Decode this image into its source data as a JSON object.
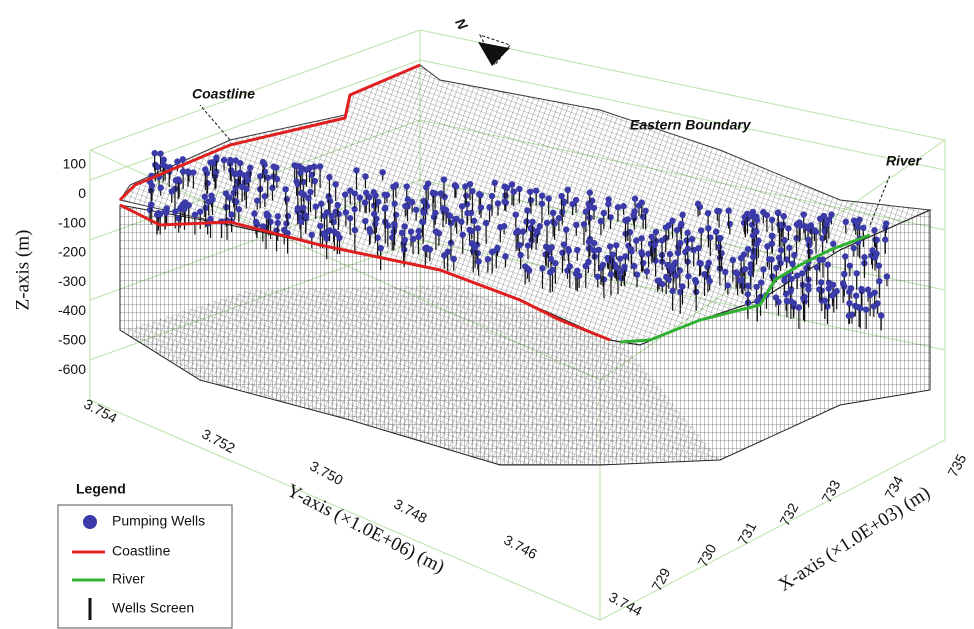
{
  "annotations": {
    "north": "N",
    "coastline": "Coastline",
    "eastern_boundary": "Eastern Boundary",
    "river": "River"
  },
  "axes": {
    "z": {
      "label": "Z-axis (m)",
      "ticks": [
        "100",
        "0",
        "-100",
        "-200",
        "-300",
        "-400",
        "-500",
        "-600"
      ]
    },
    "y": {
      "label": "Y-axis (×1.0E+06) (m)",
      "ticks": [
        "3.754",
        "3.752",
        "3.750",
        "3.748",
        "3.746",
        "3.744"
      ]
    },
    "x": {
      "label": "X-axis (×1.0E+03) (m)",
      "ticks": [
        "729",
        "730",
        "731",
        "732",
        "733",
        "734",
        "735"
      ]
    }
  },
  "legend": {
    "title": "Legend",
    "items": [
      "Pumping Wells",
      "Coastline",
      "River",
      "Wells Screen"
    ]
  }
}
